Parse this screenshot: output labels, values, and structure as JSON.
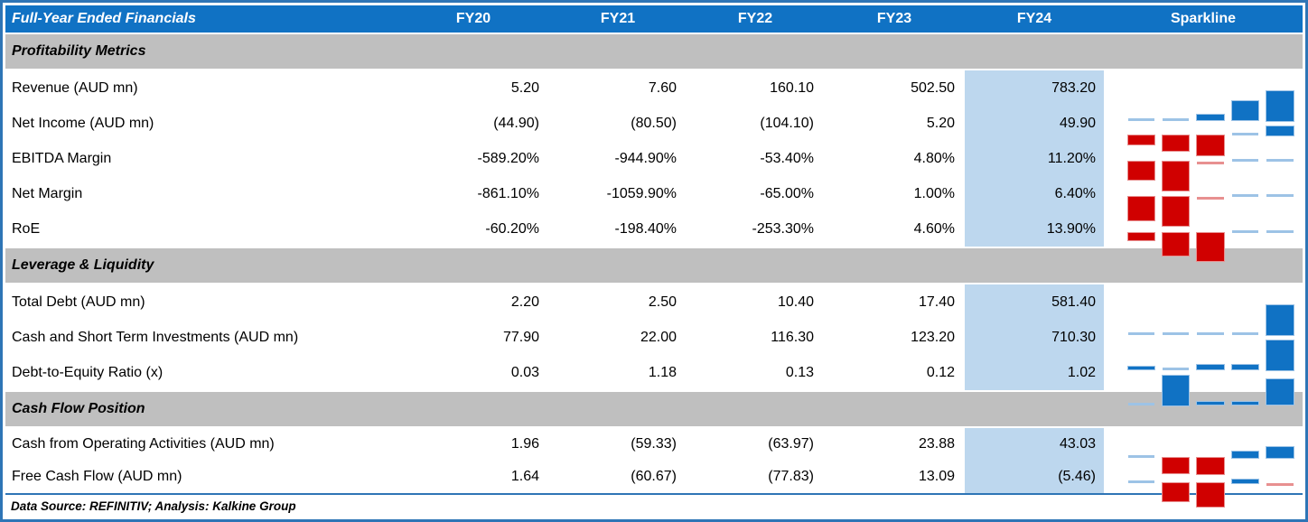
{
  "header": {
    "title": "Full-Year Ended Financials",
    "sparkline_label": "Sparkline"
  },
  "footer": {
    "text": "Data Source: REFINITIV; Analysis: Kalkine Group"
  },
  "colors": {
    "header_bg": "#1072C4",
    "header_text": "#FFFFFF",
    "border": "#2E75B6",
    "section_bg": "#BFBFBF",
    "highlight_col_bg": "#BDD7EE",
    "text": "#000000",
    "spark_positive": "#1072C4",
    "spark_positive_light": "#9DC3E6",
    "spark_negative": "#D00000",
    "spark_negative_light": "#E89090"
  },
  "chart_data": {
    "type": "table",
    "title": "Full-Year Ended Financials",
    "columns": [
      "FY20",
      "FY21",
      "FY22",
      "FY23",
      "FY24"
    ],
    "highlight_column": "FY24",
    "sparkline_type": "bar",
    "sections": [
      {
        "title": "Profitability Metrics",
        "rows": [
          {
            "label": "Revenue (AUD mn)",
            "display": [
              "5.20",
              "7.60",
              "160.10",
              "502.50",
              "783.20"
            ],
            "values": [
              5.2,
              7.6,
              160.1,
              502.5,
              783.2
            ]
          },
          {
            "label": "Net Income (AUD mn)",
            "display": [
              "(44.90)",
              "(80.50)",
              "(104.10)",
              "5.20",
              "49.90"
            ],
            "values": [
              -44.9,
              -80.5,
              -104.1,
              5.2,
              49.9
            ]
          },
          {
            "label": "EBITDA Margin",
            "display": [
              "-589.20%",
              "-944.90%",
              "-53.40%",
              "4.80%",
              "11.20%"
            ],
            "values": [
              -589.2,
              -944.9,
              -53.4,
              4.8,
              11.2
            ]
          },
          {
            "label": "Net Margin",
            "display": [
              "-861.10%",
              "-1059.90%",
              "-65.00%",
              "1.00%",
              "6.40%"
            ],
            "values": [
              -861.1,
              -1059.9,
              -65.0,
              1.0,
              6.4
            ]
          },
          {
            "label": "RoE",
            "display": [
              "-60.20%",
              "-198.40%",
              "-253.30%",
              "4.60%",
              "13.90%"
            ],
            "values": [
              -60.2,
              -198.4,
              -253.3,
              4.6,
              13.9
            ]
          }
        ]
      },
      {
        "title": "Leverage & Liquidity",
        "rows": [
          {
            "label": "Total Debt (AUD mn)",
            "display": [
              "2.20",
              "2.50",
              "10.40",
              "17.40",
              "581.40"
            ],
            "values": [
              2.2,
              2.5,
              10.4,
              17.4,
              581.4
            ]
          },
          {
            "label": "Cash and Short Term Investments (AUD mn)",
            "display": [
              "77.90",
              "22.00",
              "116.30",
              "123.20",
              "710.30"
            ],
            "values": [
              77.9,
              22.0,
              116.3,
              123.2,
              710.3
            ]
          },
          {
            "label": "Debt-to-Equity Ratio (x)",
            "display": [
              "0.03",
              "1.18",
              "0.13",
              "0.12",
              "1.02"
            ],
            "values": [
              0.03,
              1.18,
              0.13,
              0.12,
              1.02
            ]
          }
        ]
      },
      {
        "title": "Cash Flow Position",
        "rows": [
          {
            "label": "Cash from Operating Activities (AUD mn)",
            "display": [
              "1.96",
              "(59.33)",
              "(63.97)",
              "23.88",
              "43.03"
            ],
            "values": [
              1.96,
              -59.33,
              -63.97,
              23.88,
              43.03
            ]
          },
          {
            "label": "Free Cash Flow (AUD mn)",
            "display": [
              "1.64",
              "(60.67)",
              "(77.83)",
              "13.09",
              "(5.46)"
            ],
            "values": [
              1.64,
              -60.67,
              -77.83,
              13.09,
              -5.46
            ]
          }
        ]
      }
    ]
  }
}
